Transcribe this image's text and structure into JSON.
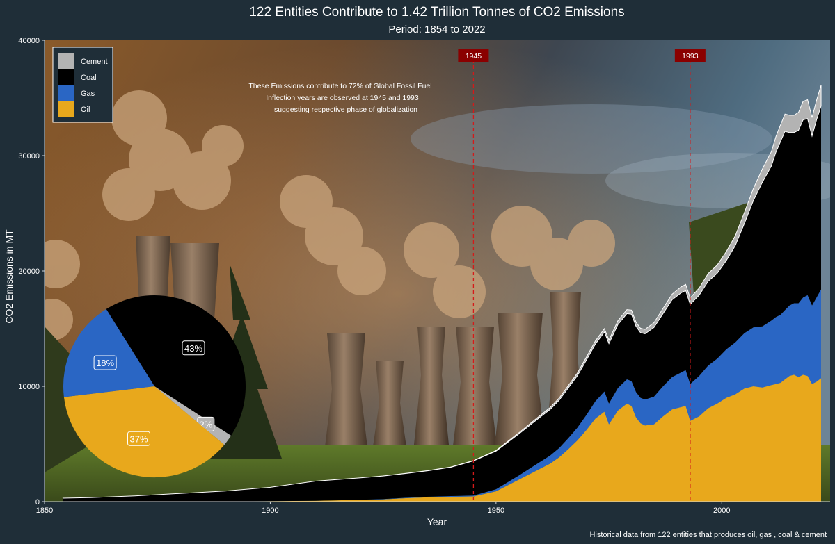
{
  "title": "122 Entities Contribute to 1.42 Trillion Tonnes of CO2 Emissions",
  "subtitle": "Period: 1854 to 2022",
  "caption": "Historical data from 122 entities that produces oil, gas , coal & cement",
  "annotation": [
    "These Emissions contribute to 72% of Global Fossil Fuel",
    "Inflection years are observed at 1945 and 1993",
    "suggesting respective phase of globalization"
  ],
  "colors": {
    "background": "#1f2e38",
    "cement": "#b3b3b3",
    "coal": "#000000",
    "gas": "#2a66c4",
    "oil": "#e8a81c",
    "marker": "#d41a1a",
    "marker_label_bg": "#8a0000"
  },
  "chart_data": {
    "type": "area",
    "stacked": true,
    "xlabel": "Year",
    "ylabel": "CO2 Emissions in MT",
    "xlim": [
      1850,
      2024
    ],
    "ylim": [
      0,
      40000
    ],
    "x_ticks": [
      "1850",
      "1900",
      "1950",
      "2000"
    ],
    "y_ticks": [
      "0",
      "10000",
      "20000",
      "30000",
      "40000"
    ],
    "legend": {
      "placement": "top-left",
      "entries": [
        "Cement",
        "Coal",
        "Gas",
        "Oil"
      ]
    },
    "markers": [
      {
        "year": 1945,
        "label": "1945"
      },
      {
        "year": 1993,
        "label": "1993"
      }
    ],
    "x": [
      1854,
      1860,
      1870,
      1880,
      1890,
      1900,
      1910,
      1920,
      1925,
      1930,
      1935,
      1940,
      1945,
      1950,
      1955,
      1960,
      1962,
      1964,
      1966,
      1968,
      1970,
      1972,
      1974,
      1975,
      1977,
      1979,
      1980,
      1981,
      1982,
      1983,
      1985,
      1987,
      1989,
      1991,
      1992,
      1993,
      1995,
      1997,
      1999,
      2001,
      2003,
      2005,
      2007,
      2009,
      2011,
      2012,
      2013,
      2014,
      2015,
      2016,
      2017,
      2018,
      2019,
      2020,
      2021,
      2022
    ],
    "series": [
      {
        "name": "Oil",
        "values": [
          0,
          0,
          0,
          10,
          20,
          40,
          80,
          150,
          200,
          300,
          380,
          420,
          450,
          900,
          1900,
          2900,
          3300,
          3850,
          4550,
          5300,
          6200,
          7200,
          7800,
          6700,
          7900,
          8500,
          8300,
          7300,
          6800,
          6600,
          6700,
          7400,
          8000,
          8200,
          8300,
          7000,
          7400,
          8100,
          8500,
          9000,
          9300,
          9800,
          10000,
          9900,
          10100,
          10200,
          10300,
          10600,
          10900,
          11000,
          10800,
          11000,
          10900,
          10200,
          10400,
          10700
        ]
      },
      {
        "name": "Gas",
        "values": [
          0,
          0,
          0,
          0,
          0,
          0,
          0,
          10,
          20,
          40,
          50,
          60,
          80,
          180,
          350,
          600,
          700,
          800,
          950,
          1100,
          1300,
          1500,
          1750,
          1800,
          1950,
          2100,
          2150,
          2200,
          2200,
          2250,
          2400,
          2600,
          2800,
          3000,
          3100,
          3200,
          3500,
          3700,
          3900,
          4200,
          4500,
          4800,
          5100,
          5300,
          5600,
          5800,
          5900,
          6000,
          6100,
          6200,
          6400,
          6700,
          7000,
          6800,
          7300,
          7700
        ]
      },
      {
        "name": "Coal",
        "values": [
          300,
          350,
          500,
          700,
          900,
          1200,
          1700,
          1900,
          2000,
          2100,
          2250,
          2500,
          3000,
          3300,
          3600,
          3900,
          4000,
          4150,
          4350,
          4500,
          4750,
          4950,
          5150,
          5200,
          5500,
          5700,
          5800,
          5700,
          5650,
          5700,
          6000,
          6300,
          6700,
          6900,
          6900,
          6900,
          7000,
          7300,
          7400,
          7700,
          8400,
          9500,
          11000,
          12500,
          13400,
          14300,
          15000,
          15500,
          15000,
          14800,
          15000,
          15400,
          15300,
          14700,
          15400,
          15900
        ]
      },
      {
        "name": "Cement",
        "values": [
          0,
          0,
          0,
          0,
          0,
          0,
          0,
          5,
          10,
          15,
          20,
          25,
          30,
          60,
          100,
          150,
          170,
          190,
          210,
          230,
          260,
          280,
          300,
          310,
          330,
          350,
          360,
          370,
          380,
          390,
          420,
          450,
          480,
          520,
          540,
          560,
          620,
          680,
          720,
          780,
          850,
          950,
          1050,
          1150,
          1250,
          1350,
          1450,
          1500,
          1500,
          1500,
          1550,
          1600,
          1650,
          1600,
          1700,
          1800
        ]
      }
    ],
    "pie": {
      "type": "pie",
      "labels": [
        "Coal",
        "Cement",
        "Oil",
        "Gas"
      ],
      "values": [
        43,
        2,
        37,
        18
      ],
      "value_labels": [
        "43%",
        "2%",
        "37%",
        "18%"
      ]
    }
  }
}
